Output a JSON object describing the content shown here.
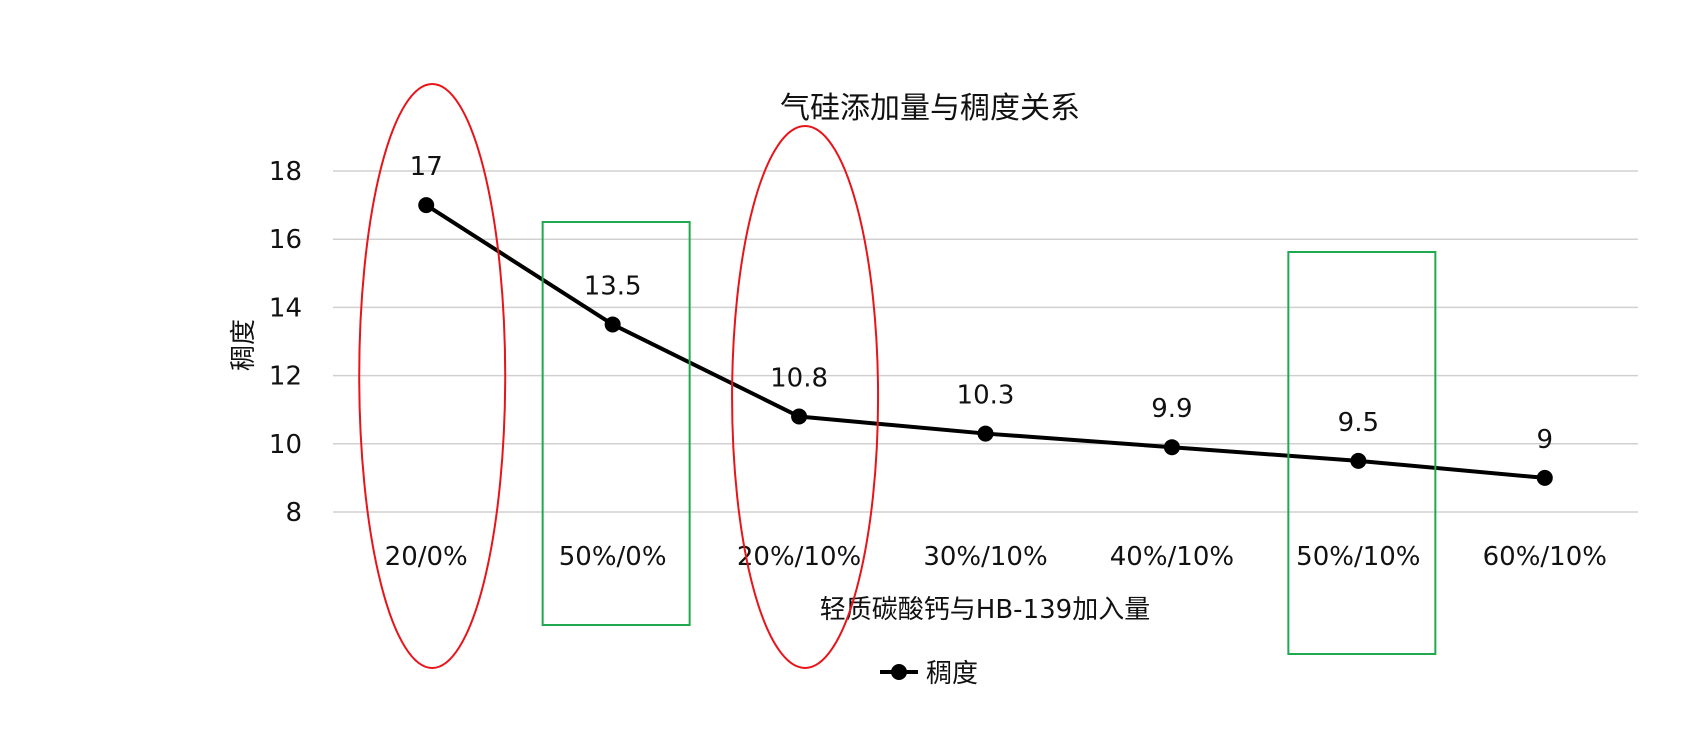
{
  "chart_data": {
    "type": "line",
    "title": "气硅添加量与稠度关系",
    "xlabel": "轻质碳酸钙与HB-139加入量",
    "ylabel": "稠度",
    "categories": [
      "20/0%",
      "50%/0%",
      "20%/10%",
      "30%/10%",
      "40%/10%",
      "50%/10%",
      "60%/10%"
    ],
    "series": [
      {
        "name": "稠度",
        "values": [
          17,
          13.5,
          10.8,
          10.3,
          9.9,
          9.5,
          9
        ],
        "data_labels": [
          "17",
          "13.5",
          "10.8",
          "10.3",
          "9.9",
          "9.5",
          "9"
        ]
      }
    ],
    "ylim": [
      8,
      18
    ],
    "yticks": [
      8,
      10,
      12,
      14,
      16,
      18
    ],
    "grid": true,
    "legend": "bottom",
    "colors": {
      "line": "#000000",
      "grid": "#d0d0d0",
      "ellipse": "#e8141a",
      "box": "#1faa50"
    },
    "annotations": [
      {
        "type": "ellipse",
        "around": "20/0%"
      },
      {
        "type": "rectangle",
        "around": "50%/0%"
      },
      {
        "type": "ellipse",
        "around": "20%/10%"
      },
      {
        "type": "rectangle",
        "around": "50%/10%"
      }
    ]
  }
}
